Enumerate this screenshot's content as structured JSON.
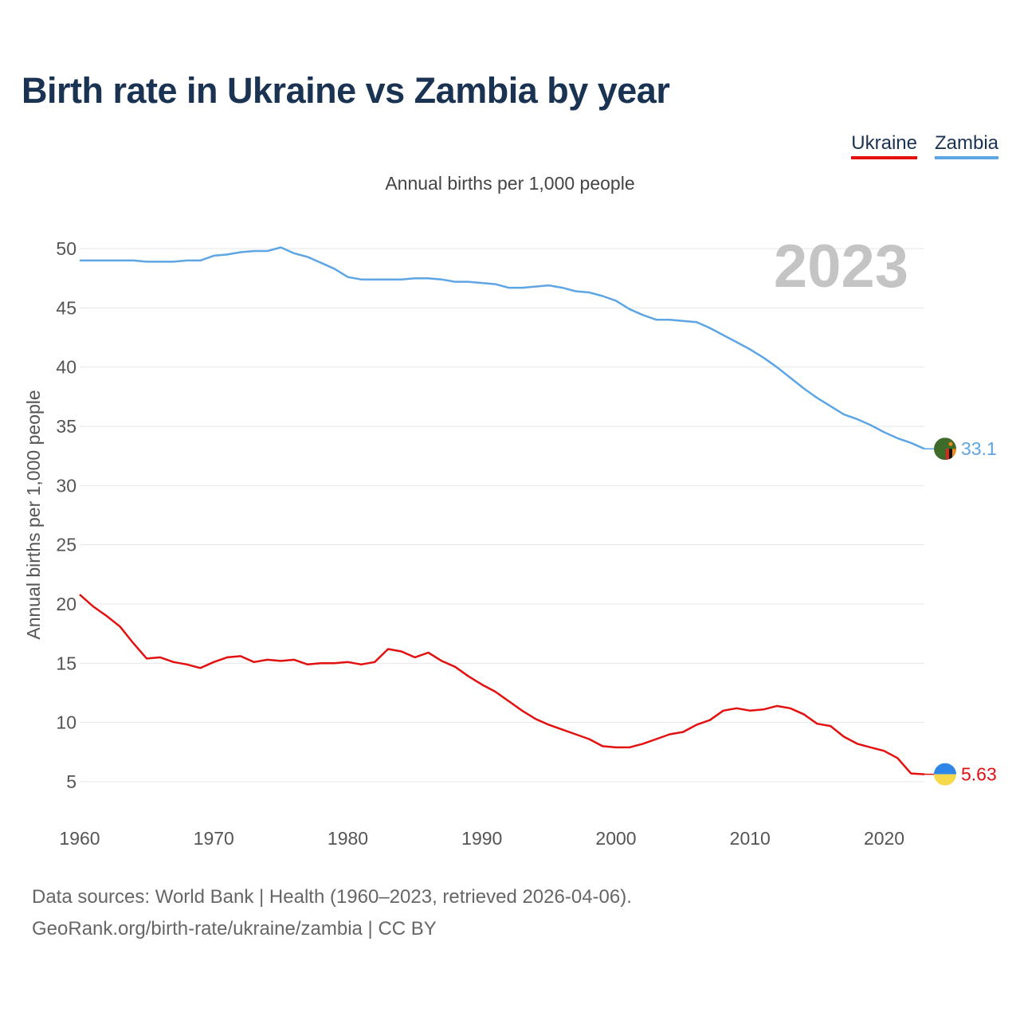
{
  "chart_data": {
    "type": "line",
    "title": "Birth rate in Ukraine vs Zambia by year",
    "subtitle": "Annual births per 1,000 people",
    "ylabel": "Annual births per 1,000 people",
    "xlabel": "",
    "xlim": [
      1960,
      2023
    ],
    "ylim": [
      2,
      52
    ],
    "x_ticks": [
      1960,
      1970,
      1980,
      1990,
      2000,
      2010,
      2020
    ],
    "y_ticks": [
      5,
      10,
      15,
      20,
      25,
      30,
      35,
      40,
      45,
      50
    ],
    "year_label": "2023",
    "x": [
      1960,
      1961,
      1962,
      1963,
      1964,
      1965,
      1966,
      1967,
      1968,
      1969,
      1970,
      1971,
      1972,
      1973,
      1974,
      1975,
      1976,
      1977,
      1978,
      1979,
      1980,
      1981,
      1982,
      1983,
      1984,
      1985,
      1986,
      1987,
      1988,
      1989,
      1990,
      1991,
      1992,
      1993,
      1994,
      1995,
      1996,
      1997,
      1998,
      1999,
      2000,
      2001,
      2002,
      2003,
      2004,
      2005,
      2006,
      2007,
      2008,
      2009,
      2010,
      2011,
      2012,
      2013,
      2014,
      2015,
      2016,
      2017,
      2018,
      2019,
      2020,
      2021,
      2022,
      2023
    ],
    "series": [
      {
        "name": "Ukraine",
        "color": "#e31010",
        "end_label": "5.63",
        "flag": "ukraine-flag-icon",
        "values": [
          20.8,
          19.8,
          19.0,
          18.1,
          16.7,
          15.4,
          15.5,
          15.1,
          14.9,
          14.6,
          15.1,
          15.5,
          15.6,
          15.1,
          15.3,
          15.2,
          15.3,
          14.9,
          15.0,
          15.0,
          15.1,
          14.9,
          15.1,
          16.2,
          16.0,
          15.5,
          15.9,
          15.2,
          14.7,
          13.9,
          13.2,
          12.6,
          11.8,
          11.0,
          10.3,
          9.8,
          9.4,
          9.0,
          8.6,
          8.0,
          7.9,
          7.9,
          8.2,
          8.6,
          9.0,
          9.2,
          9.8,
          10.2,
          11.0,
          11.2,
          11.0,
          11.1,
          11.4,
          11.2,
          10.7,
          9.9,
          9.7,
          8.8,
          8.2,
          7.9,
          7.6,
          7.0,
          5.7,
          5.63
        ]
      },
      {
        "name": "Zambia",
        "color": "#5ea5e4",
        "end_label": "33.1",
        "flag": "zambia-flag-icon",
        "values": [
          49.0,
          49.0,
          49.0,
          49.0,
          49.0,
          48.9,
          48.9,
          48.9,
          49.0,
          49.0,
          49.4,
          49.5,
          49.7,
          49.8,
          49.8,
          50.1,
          49.6,
          49.3,
          48.8,
          48.3,
          47.6,
          47.4,
          47.4,
          47.4,
          47.4,
          47.5,
          47.5,
          47.4,
          47.2,
          47.2,
          47.1,
          47.0,
          46.7,
          46.7,
          46.8,
          46.9,
          46.7,
          46.4,
          46.3,
          46.0,
          45.6,
          44.9,
          44.4,
          44.0,
          44.0,
          43.9,
          43.8,
          43.3,
          42.7,
          42.1,
          41.5,
          40.8,
          40.0,
          39.1,
          38.2,
          37.4,
          36.7,
          36.0,
          35.6,
          35.1,
          34.5,
          34.0,
          33.6,
          33.1
        ]
      }
    ]
  },
  "legend": {
    "ukraine_label": "Ukraine",
    "zambia_label": "Zambia"
  },
  "footer": {
    "line1": "Data sources: World Bank | Health (1960–2023, retrieved 2026-04-06).",
    "line2": "GeoRank.org/birth-rate/ukraine/zambia | CC BY"
  }
}
